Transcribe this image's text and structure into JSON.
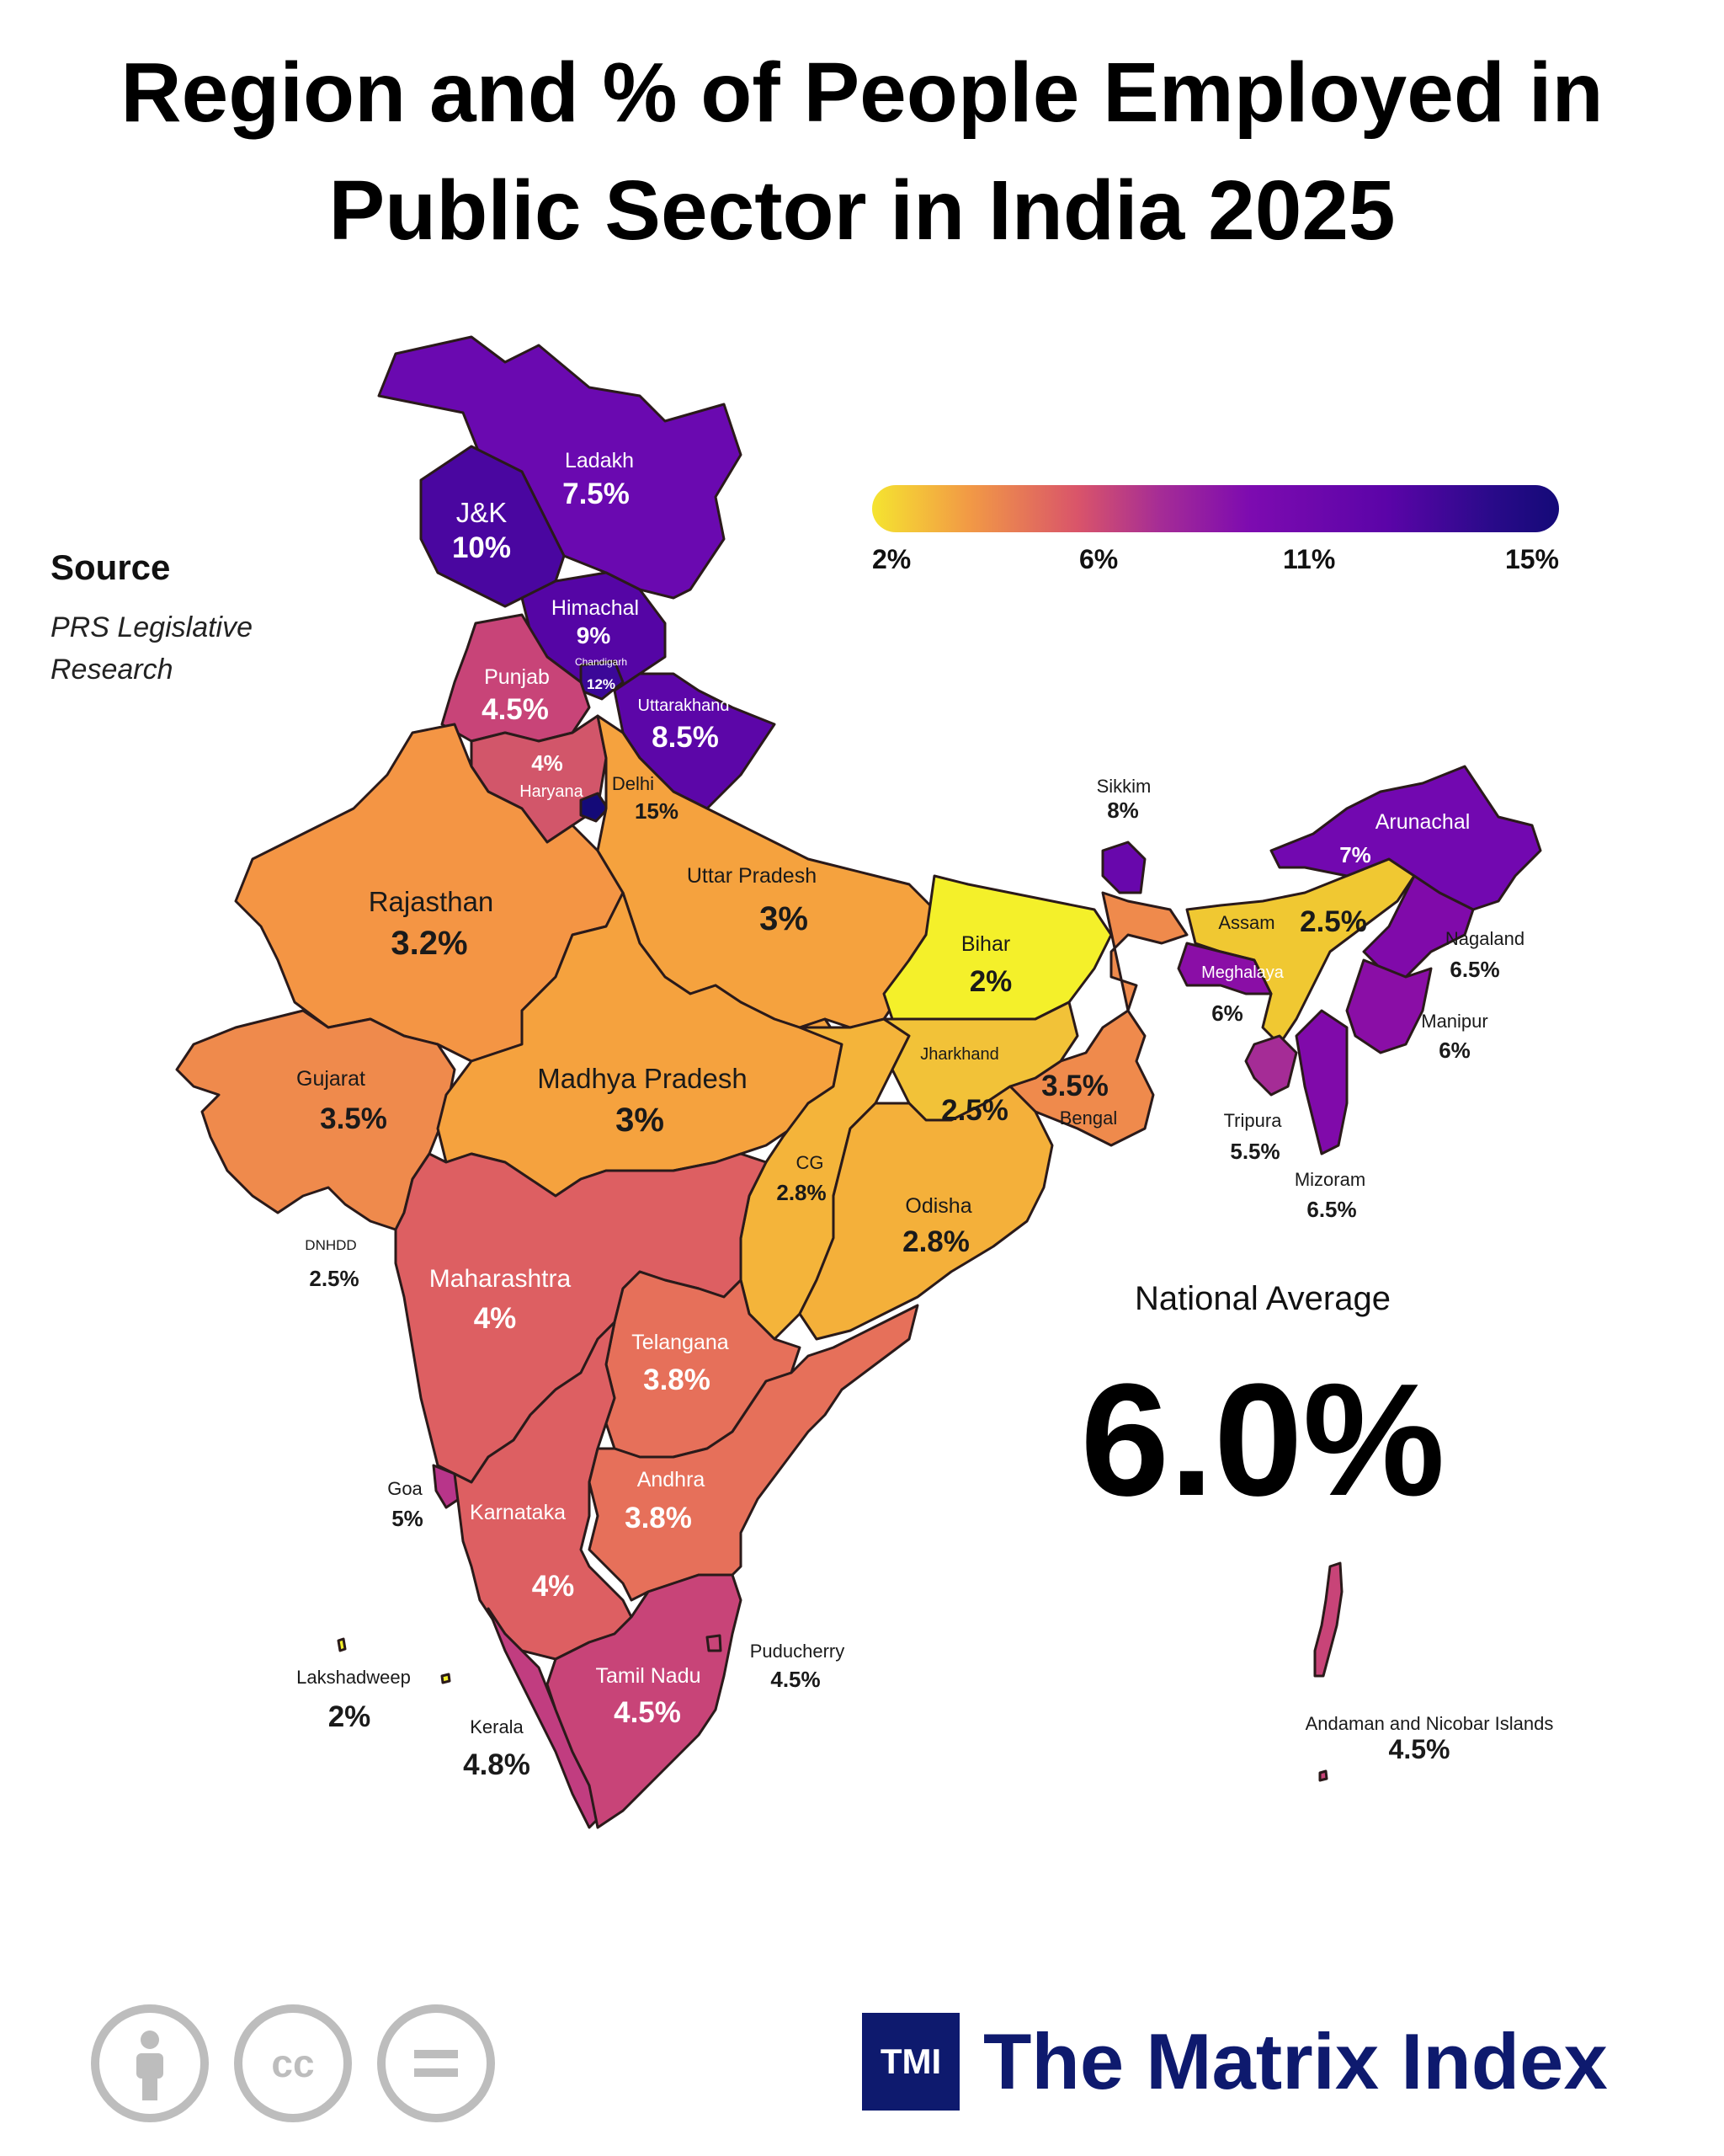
{
  "title": {
    "line1": "Region and % of People Employed in",
    "line2": "Public Sector in India 2025"
  },
  "source": {
    "heading": "Source",
    "text": "PRS Legislative Research"
  },
  "legend": {
    "ticks": [
      "2%",
      "6%",
      "11%",
      "15%"
    ],
    "range": [
      2,
      15
    ],
    "colors": [
      "#f5e430",
      "#f29a45",
      "#d9546a",
      "#a52c96",
      "#7d0bb0",
      "#5b04a8",
      "#2a0a8a",
      "#140a78"
    ]
  },
  "national_average": {
    "label": "National Average",
    "value": "6.0%"
  },
  "regions": [
    {
      "id": "ladakh",
      "name": "Ladakh",
      "value": "7.5%",
      "pct": 7.5,
      "color": "#6a09b0"
    },
    {
      "id": "jk",
      "name": "J&K",
      "value": "10%",
      "pct": 10,
      "color": "#4a06a0"
    },
    {
      "id": "himachal",
      "name": "Himachal",
      "value": "9%",
      "pct": 9,
      "color": "#5505a5"
    },
    {
      "id": "chandigarh",
      "name": "Chandigarh",
      "value": "12%",
      "pct": 12,
      "color": "#3b0898"
    },
    {
      "id": "punjab",
      "name": "Punjab",
      "value": "4.5%",
      "pct": 4.5,
      "color": "#c84478"
    },
    {
      "id": "uttarakhand",
      "name": "Uttarakhand",
      "value": "8.5%",
      "pct": 8.5,
      "color": "#5c06a8"
    },
    {
      "id": "haryana",
      "name": "Haryana",
      "value": "4%",
      "pct": 4,
      "color": "#d2566a"
    },
    {
      "id": "delhi",
      "name": "Delhi",
      "value": "15%",
      "pct": 15,
      "color": "#140a78"
    },
    {
      "id": "rajasthan",
      "name": "Rajasthan",
      "value": "3.2%",
      "pct": 3.2,
      "color": "#f49544"
    },
    {
      "id": "up",
      "name": "Uttar Pradesh",
      "value": "3%",
      "pct": 3,
      "color": "#f5a23e"
    },
    {
      "id": "bihar",
      "name": "Bihar",
      "value": "2%",
      "pct": 2,
      "color": "#f4f02a"
    },
    {
      "id": "sikkim",
      "name": "Sikkim",
      "value": "8%",
      "pct": 8,
      "color": "#6807ac"
    },
    {
      "id": "arunachal",
      "name": "Arunachal",
      "value": "7%",
      "pct": 7,
      "color": "#7208b0"
    },
    {
      "id": "assam",
      "name": "Assam",
      "value": "2.5%",
      "pct": 2.5,
      "color": "#f0c832"
    },
    {
      "id": "nagaland",
      "name": "Nagaland",
      "value": "6.5%",
      "pct": 6.5,
      "color": "#800aaa"
    },
    {
      "id": "meghalaya",
      "name": "Meghalaya",
      "value": "6%",
      "pct": 6,
      "color": "#8a0ea6"
    },
    {
      "id": "manipur",
      "name": "Manipur",
      "value": "6%",
      "pct": 6,
      "color": "#8a0ea6"
    },
    {
      "id": "tripura",
      "name": "Tripura",
      "value": "5.5%",
      "pct": 5.5,
      "color": "#a52c96"
    },
    {
      "id": "mizoram",
      "name": "Mizoram",
      "value": "6.5%",
      "pct": 6.5,
      "color": "#800aaa"
    },
    {
      "id": "gujarat",
      "name": "Gujarat",
      "value": "3.5%",
      "pct": 3.5,
      "color": "#ef8a4c"
    },
    {
      "id": "mp",
      "name": "Madhya Pradesh",
      "value": "3%",
      "pct": 3,
      "color": "#f5a23e"
    },
    {
      "id": "jharkhand",
      "name": "Jharkhand",
      "value": "2.5%",
      "pct": 2.5,
      "color": "#f2c238"
    },
    {
      "id": "bengal",
      "name": "Bengal",
      "value": "3.5%",
      "pct": 3.5,
      "color": "#ef8a4c"
    },
    {
      "id": "cg",
      "name": "CG",
      "value": "2.8%",
      "pct": 2.8,
      "color": "#f4b43a"
    },
    {
      "id": "odisha",
      "name": "Odisha",
      "value": "2.8%",
      "pct": 2.8,
      "color": "#f4b03a"
    },
    {
      "id": "dnhdd",
      "name": "DNHDD",
      "value": "2.5%",
      "pct": 2.5,
      "color": "#f2c238"
    },
    {
      "id": "maharashtra",
      "name": "Maharashtra",
      "value": "4%",
      "pct": 4,
      "color": "#dd5f62"
    },
    {
      "id": "telangana",
      "name": "Telangana",
      "value": "3.8%",
      "pct": 3.8,
      "color": "#e6705a"
    },
    {
      "id": "goa",
      "name": "Goa",
      "value": "5%",
      "pct": 5,
      "color": "#b8358a"
    },
    {
      "id": "karnataka",
      "name": "Karnataka",
      "value": "4%",
      "pct": 4,
      "color": "#dd5f62"
    },
    {
      "id": "andhra",
      "name": "Andhra",
      "value": "3.8%",
      "pct": 3.8,
      "color": "#e6705a"
    },
    {
      "id": "kerala",
      "name": "Kerala",
      "value": "4.8%",
      "pct": 4.8,
      "color": "#c13d80"
    },
    {
      "id": "tamilnadu",
      "name": "Tamil Nadu",
      "value": "4.5%",
      "pct": 4.5,
      "color": "#c84478"
    },
    {
      "id": "puducherry",
      "name": "Puducherry",
      "value": "4.5%",
      "pct": 4.5,
      "color": "#c84478"
    },
    {
      "id": "lakshadweep",
      "name": "Lakshadweep",
      "value": "2%",
      "pct": 2,
      "color": "#f4f02a"
    },
    {
      "id": "andaman",
      "name": "Andaman and Nicobar Islands",
      "value": "4.5%",
      "pct": 4.5,
      "color": "#c84478"
    }
  ],
  "license_icons": [
    "attribution-icon",
    "cc-icon",
    "no-derivatives-icon"
  ],
  "brand": {
    "logo_text": "TMI",
    "name": "The Matrix Index",
    "color": "#0e1a6e"
  }
}
